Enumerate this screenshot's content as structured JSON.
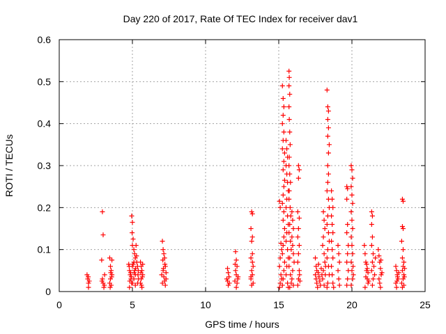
{
  "chart_data": {
    "type": "scatter",
    "title": "Day 220 of 2017, Rate Of TEC Index for receiver dav1",
    "xlabel": "GPS time / hours",
    "ylabel": "ROTI / TECUs",
    "xlim": [
      0,
      25
    ],
    "ylim": [
      0,
      0.6
    ],
    "x_ticks": [
      0,
      5,
      10,
      15,
      20,
      25
    ],
    "y_ticks": [
      0,
      0.1,
      0.2,
      0.3,
      0.4,
      0.5,
      0.6
    ],
    "x_tick_labels": [
      "0",
      "5",
      "10",
      "15",
      "20",
      "25"
    ],
    "y_tick_labels": [
      "0",
      "0.1",
      "0.2",
      "0.3",
      "0.4",
      "0.5",
      "0.6"
    ],
    "grid": true,
    "marker": "plus",
    "marker_color": "#ff0000",
    "points": [
      [
        1.9,
        0.04
      ],
      [
        1.95,
        0.03
      ],
      [
        2.0,
        0.02
      ],
      [
        2.0,
        0.01
      ],
      [
        2.05,
        0.025
      ],
      [
        1.98,
        0.035
      ],
      [
        2.95,
        0.19
      ],
      [
        3.0,
        0.135
      ],
      [
        2.9,
        0.075
      ],
      [
        2.95,
        0.03
      ],
      [
        3.0,
        0.02
      ],
      [
        3.05,
        0.01
      ],
      [
        3.1,
        0.04
      ],
      [
        2.92,
        0.025
      ],
      [
        3.08,
        0.015
      ],
      [
        3.45,
        0.08
      ],
      [
        3.5,
        0.06
      ],
      [
        3.55,
        0.05
      ],
      [
        3.6,
        0.04
      ],
      [
        3.5,
        0.03
      ],
      [
        3.45,
        0.02
      ],
      [
        3.55,
        0.015
      ],
      [
        3.6,
        0.075
      ],
      [
        3.48,
        0.01
      ],
      [
        3.58,
        0.035
      ],
      [
        3.52,
        0.045
      ],
      [
        4.75,
        0.065
      ],
      [
        4.8,
        0.05
      ],
      [
        4.85,
        0.04
      ],
      [
        4.9,
        0.03
      ],
      [
        4.95,
        0.02
      ],
      [
        4.8,
        0.01
      ],
      [
        4.78,
        0.06
      ],
      [
        4.88,
        0.045
      ],
      [
        4.92,
        0.035
      ],
      [
        4.82,
        0.025
      ],
      [
        4.95,
        0.18
      ],
      [
        5.0,
        0.165
      ],
      [
        4.98,
        0.14
      ],
      [
        5.05,
        0.125
      ],
      [
        5.0,
        0.11
      ],
      [
        5.1,
        0.1
      ],
      [
        5.15,
        0.09
      ],
      [
        5.2,
        0.08
      ],
      [
        5.1,
        0.07
      ],
      [
        5.05,
        0.065
      ],
      [
        5.0,
        0.06
      ],
      [
        5.15,
        0.05
      ],
      [
        5.2,
        0.04
      ],
      [
        5.1,
        0.03
      ],
      [
        5.0,
        0.02
      ],
      [
        5.2,
        0.015
      ],
      [
        5.25,
        0.11
      ],
      [
        5.28,
        0.085
      ],
      [
        5.3,
        0.07
      ],
      [
        5.22,
        0.055
      ],
      [
        5.12,
        0.045
      ],
      [
        5.35,
        0.06
      ],
      [
        5.4,
        0.05
      ],
      [
        5.38,
        0.04
      ],
      [
        5.42,
        0.03
      ],
      [
        5.36,
        0.02
      ],
      [
        5.55,
        0.07
      ],
      [
        5.6,
        0.06
      ],
      [
        5.65,
        0.05
      ],
      [
        5.7,
        0.04
      ],
      [
        5.6,
        0.03
      ],
      [
        5.55,
        0.02
      ],
      [
        5.65,
        0.01
      ],
      [
        5.7,
        0.065
      ],
      [
        5.58,
        0.045
      ],
      [
        5.68,
        0.035
      ],
      [
        5.62,
        0.015
      ],
      [
        7.05,
        0.12
      ],
      [
        7.1,
        0.1
      ],
      [
        7.15,
        0.09
      ],
      [
        7.2,
        0.08
      ],
      [
        7.25,
        0.06
      ],
      [
        7.1,
        0.05
      ],
      [
        7.0,
        0.04
      ],
      [
        7.15,
        0.035
      ],
      [
        7.3,
        0.03
      ],
      [
        7.2,
        0.025
      ],
      [
        7.05,
        0.02
      ],
      [
        7.25,
        0.015
      ],
      [
        7.3,
        0.045
      ],
      [
        7.12,
        0.055
      ],
      [
        7.22,
        0.065
      ],
      [
        7.08,
        0.075
      ],
      [
        11.5,
        0.055
      ],
      [
        11.55,
        0.045
      ],
      [
        11.6,
        0.035
      ],
      [
        11.5,
        0.025
      ],
      [
        11.55,
        0.015
      ],
      [
        11.45,
        0.03
      ],
      [
        11.62,
        0.02
      ],
      [
        12.05,
        0.095
      ],
      [
        12.1,
        0.075
      ],
      [
        12.15,
        0.06
      ],
      [
        12.05,
        0.05
      ],
      [
        12.1,
        0.04
      ],
      [
        12.2,
        0.03
      ],
      [
        12.0,
        0.025
      ],
      [
        12.15,
        0.02
      ],
      [
        12.1,
        0.01
      ],
      [
        12.22,
        0.035
      ],
      [
        12.02,
        0.065
      ],
      [
        13.15,
        0.19
      ],
      [
        13.2,
        0.185
      ],
      [
        13.1,
        0.15
      ],
      [
        13.2,
        0.13
      ],
      [
        13.15,
        0.12
      ],
      [
        13.2,
        0.09
      ],
      [
        13.1,
        0.08
      ],
      [
        13.25,
        0.06
      ],
      [
        13.15,
        0.05
      ],
      [
        13.2,
        0.04
      ],
      [
        13.1,
        0.03
      ],
      [
        13.25,
        0.02
      ],
      [
        13.15,
        0.015
      ],
      [
        13.2,
        0.07
      ],
      [
        13.1,
        0.035
      ],
      [
        15.05,
        0.215
      ],
      [
        15.1,
        0.2
      ],
      [
        15.15,
        0.115
      ],
      [
        15.2,
        0.1
      ],
      [
        15.1,
        0.08
      ],
      [
        15.05,
        0.06
      ],
      [
        15.15,
        0.04
      ],
      [
        15.2,
        0.03
      ],
      [
        15.1,
        0.02
      ],
      [
        15.05,
        0.01
      ],
      [
        15.25,
        0.49
      ],
      [
        15.3,
        0.46
      ],
      [
        15.35,
        0.44
      ],
      [
        15.3,
        0.42
      ],
      [
        15.25,
        0.4
      ],
      [
        15.35,
        0.38
      ],
      [
        15.3,
        0.36
      ],
      [
        15.25,
        0.34
      ],
      [
        15.4,
        0.33
      ],
      [
        15.35,
        0.31
      ],
      [
        15.3,
        0.29
      ],
      [
        15.4,
        0.265
      ],
      [
        15.35,
        0.25
      ],
      [
        15.3,
        0.23
      ],
      [
        15.25,
        0.21
      ],
      [
        15.35,
        0.19
      ],
      [
        15.3,
        0.17
      ],
      [
        15.4,
        0.15
      ],
      [
        15.35,
        0.13
      ],
      [
        15.3,
        0.11
      ],
      [
        15.25,
        0.09
      ],
      [
        15.4,
        0.07
      ],
      [
        15.35,
        0.05
      ],
      [
        15.3,
        0.03
      ],
      [
        15.25,
        0.015
      ],
      [
        15.5,
        0.36
      ],
      [
        15.55,
        0.34
      ],
      [
        15.6,
        0.32
      ],
      [
        15.5,
        0.3
      ],
      [
        15.55,
        0.28
      ],
      [
        15.6,
        0.26
      ],
      [
        15.65,
        0.24
      ],
      [
        15.55,
        0.22
      ],
      [
        15.5,
        0.2
      ],
      [
        15.6,
        0.18
      ],
      [
        15.65,
        0.16
      ],
      [
        15.55,
        0.14
      ],
      [
        15.5,
        0.12
      ],
      [
        15.6,
        0.1
      ],
      [
        15.65,
        0.08
      ],
      [
        15.55,
        0.06
      ],
      [
        15.5,
        0.04
      ],
      [
        15.6,
        0.02
      ],
      [
        15.65,
        0.01
      ],
      [
        15.7,
        0.525
      ],
      [
        15.72,
        0.51
      ],
      [
        15.7,
        0.49
      ],
      [
        15.75,
        0.47
      ],
      [
        15.7,
        0.44
      ],
      [
        15.72,
        0.41
      ],
      [
        15.75,
        0.38
      ],
      [
        15.78,
        0.35
      ],
      [
        15.72,
        0.32
      ],
      [
        15.7,
        0.3
      ],
      [
        15.75,
        0.28
      ],
      [
        15.8,
        0.26
      ],
      [
        15.72,
        0.24
      ],
      [
        15.7,
        0.22
      ],
      [
        15.78,
        0.2
      ],
      [
        15.82,
        0.18
      ],
      [
        15.75,
        0.16
      ],
      [
        15.7,
        0.14
      ],
      [
        15.8,
        0.12
      ],
      [
        15.85,
        0.1
      ],
      [
        15.75,
        0.08
      ],
      [
        15.7,
        0.06
      ],
      [
        15.8,
        0.04
      ],
      [
        15.85,
        0.02
      ],
      [
        15.75,
        0.01
      ],
      [
        15.9,
        0.19
      ],
      [
        15.95,
        0.17
      ],
      [
        16.0,
        0.15
      ],
      [
        15.9,
        0.13
      ],
      [
        15.95,
        0.11
      ],
      [
        16.0,
        0.09
      ],
      [
        16.05,
        0.07
      ],
      [
        15.95,
        0.05
      ],
      [
        15.9,
        0.03
      ],
      [
        16.0,
        0.015
      ],
      [
        16.35,
        0.3
      ],
      [
        16.4,
        0.29
      ],
      [
        16.35,
        0.27
      ],
      [
        16.3,
        0.19
      ],
      [
        16.4,
        0.175
      ],
      [
        16.35,
        0.15
      ],
      [
        16.3,
        0.13
      ],
      [
        16.4,
        0.11
      ],
      [
        16.35,
        0.09
      ],
      [
        16.3,
        0.07
      ],
      [
        16.4,
        0.05
      ],
      [
        16.35,
        0.03
      ],
      [
        16.3,
        0.015
      ],
      [
        16.45,
        0.025
      ],
      [
        16.42,
        0.04
      ],
      [
        17.5,
        0.08
      ],
      [
        17.55,
        0.06
      ],
      [
        17.6,
        0.05
      ],
      [
        17.5,
        0.04
      ],
      [
        17.55,
        0.03
      ],
      [
        17.6,
        0.02
      ],
      [
        17.65,
        0.01
      ],
      [
        17.7,
        0.045
      ],
      [
        17.75,
        0.035
      ],
      [
        17.8,
        0.025
      ],
      [
        17.85,
        0.015
      ],
      [
        17.9,
        0.055
      ],
      [
        17.95,
        0.04
      ],
      [
        17.72,
        0.065
      ],
      [
        18.05,
        0.19
      ],
      [
        18.1,
        0.17
      ],
      [
        18.15,
        0.15
      ],
      [
        18.05,
        0.13
      ],
      [
        18.0,
        0.11
      ],
      [
        18.1,
        0.09
      ],
      [
        18.15,
        0.07
      ],
      [
        18.05,
        0.05
      ],
      [
        18.0,
        0.03
      ],
      [
        18.1,
        0.015
      ],
      [
        18.2,
        0.06
      ],
      [
        18.18,
        0.04
      ],
      [
        18.3,
        0.48
      ],
      [
        18.35,
        0.44
      ],
      [
        18.4,
        0.43
      ],
      [
        18.35,
        0.41
      ],
      [
        18.4,
        0.39
      ],
      [
        18.35,
        0.37
      ],
      [
        18.45,
        0.35
      ],
      [
        18.4,
        0.33
      ],
      [
        18.35,
        0.3
      ],
      [
        18.4,
        0.28
      ],
      [
        18.35,
        0.26
      ],
      [
        18.3,
        0.24
      ],
      [
        18.4,
        0.22
      ],
      [
        18.45,
        0.2
      ],
      [
        18.35,
        0.18
      ],
      [
        18.3,
        0.16
      ],
      [
        18.4,
        0.14
      ],
      [
        18.45,
        0.12
      ],
      [
        18.35,
        0.1
      ],
      [
        18.3,
        0.08
      ],
      [
        18.4,
        0.06
      ],
      [
        18.45,
        0.04
      ],
      [
        18.35,
        0.02
      ],
      [
        18.3,
        0.01
      ],
      [
        18.6,
        0.24
      ],
      [
        18.65,
        0.22
      ],
      [
        18.7,
        0.2
      ],
      [
        18.6,
        0.18
      ],
      [
        18.65,
        0.16
      ],
      [
        18.7,
        0.14
      ],
      [
        18.6,
        0.12
      ],
      [
        18.65,
        0.1
      ],
      [
        18.7,
        0.08
      ],
      [
        18.6,
        0.06
      ],
      [
        18.65,
        0.04
      ],
      [
        18.7,
        0.02
      ],
      [
        18.75,
        0.01
      ],
      [
        19.05,
        0.11
      ],
      [
        19.1,
        0.09
      ],
      [
        19.15,
        0.07
      ],
      [
        19.05,
        0.05
      ],
      [
        19.1,
        0.03
      ],
      [
        19.15,
        0.015
      ],
      [
        19.65,
        0.25
      ],
      [
        19.7,
        0.245
      ],
      [
        19.65,
        0.22
      ],
      [
        19.7,
        0.16
      ],
      [
        19.65,
        0.14
      ],
      [
        19.75,
        0.11
      ],
      [
        19.7,
        0.09
      ],
      [
        19.65,
        0.07
      ],
      [
        19.75,
        0.05
      ],
      [
        19.7,
        0.03
      ],
      [
        19.65,
        0.015
      ],
      [
        19.95,
        0.3
      ],
      [
        20.0,
        0.29
      ],
      [
        20.05,
        0.27
      ],
      [
        19.95,
        0.25
      ],
      [
        20.0,
        0.23
      ],
      [
        20.05,
        0.21
      ],
      [
        19.95,
        0.19
      ],
      [
        20.0,
        0.17
      ],
      [
        20.05,
        0.15
      ],
      [
        19.95,
        0.13
      ],
      [
        20.0,
        0.11
      ],
      [
        20.05,
        0.09
      ],
      [
        19.95,
        0.07
      ],
      [
        20.0,
        0.05
      ],
      [
        20.05,
        0.03
      ],
      [
        19.95,
        0.015
      ],
      [
        20.1,
        0.04
      ],
      [
        20.08,
        0.06
      ],
      [
        20.85,
        0.11
      ],
      [
        20.9,
        0.09
      ],
      [
        20.95,
        0.07
      ],
      [
        21.0,
        0.05
      ],
      [
        21.05,
        0.03
      ],
      [
        21.1,
        0.02
      ],
      [
        20.9,
        0.01
      ],
      [
        21.0,
        0.065
      ],
      [
        21.1,
        0.045
      ],
      [
        20.95,
        0.035
      ],
      [
        21.05,
        0.055
      ],
      [
        21.15,
        0.025
      ],
      [
        21.35,
        0.19
      ],
      [
        21.4,
        0.18
      ],
      [
        21.35,
        0.16
      ],
      [
        21.4,
        0.13
      ],
      [
        21.35,
        0.11
      ],
      [
        21.45,
        0.09
      ],
      [
        21.4,
        0.07
      ],
      [
        21.35,
        0.05
      ],
      [
        21.45,
        0.03
      ],
      [
        21.4,
        0.015
      ],
      [
        21.5,
        0.06
      ],
      [
        21.55,
        0.04
      ],
      [
        21.6,
        0.08
      ],
      [
        21.8,
        0.1
      ],
      [
        21.85,
        0.085
      ],
      [
        21.9,
        0.07
      ],
      [
        21.95,
        0.055
      ],
      [
        22.0,
        0.04
      ],
      [
        21.85,
        0.03
      ],
      [
        21.9,
        0.02
      ],
      [
        21.95,
        0.01
      ],
      [
        22.05,
        0.045
      ],
      [
        21.98,
        0.075
      ],
      [
        23.0,
        0.06
      ],
      [
        23.05,
        0.05
      ],
      [
        23.1,
        0.04
      ],
      [
        23.15,
        0.03
      ],
      [
        23.0,
        0.02
      ],
      [
        23.05,
        0.01
      ],
      [
        23.2,
        0.045
      ],
      [
        23.12,
        0.035
      ],
      [
        23.08,
        0.025
      ],
      [
        23.45,
        0.22
      ],
      [
        23.5,
        0.215
      ],
      [
        23.45,
        0.155
      ],
      [
        23.5,
        0.15
      ],
      [
        23.4,
        0.12
      ],
      [
        23.5,
        0.1
      ],
      [
        23.45,
        0.08
      ],
      [
        23.55,
        0.07
      ],
      [
        23.5,
        0.06
      ],
      [
        23.45,
        0.05
      ],
      [
        23.55,
        0.04
      ],
      [
        23.5,
        0.03
      ],
      [
        23.4,
        0.02
      ],
      [
        23.55,
        0.015
      ],
      [
        23.45,
        0.01
      ],
      [
        23.6,
        0.055
      ],
      [
        23.58,
        0.035
      ]
    ]
  }
}
